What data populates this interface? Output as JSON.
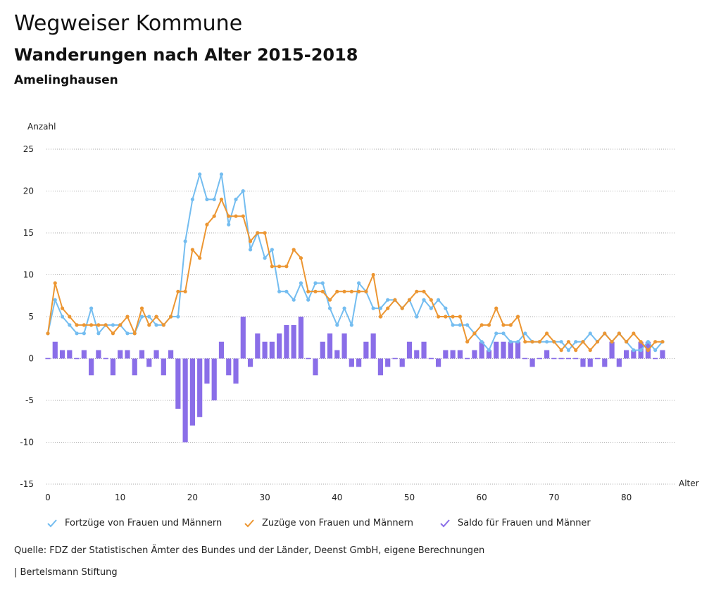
{
  "header": {
    "title": "Wegweiser Kommune",
    "subtitle": "Wanderungen nach Alter 2015-2018",
    "region": "Amelinghausen"
  },
  "footer": {
    "source": "Quelle: FDZ der Statistischen Ämter des Bundes und der Länder, Deenst GmbH, eigene Berechnungen",
    "org": "| Bertelsmann Stiftung"
  },
  "colors": {
    "fortzuege": "#74bdf0",
    "zuzuege": "#ec9632",
    "saldo": "#8a6ee8",
    "grid": "#aaaaaa"
  },
  "chart_data": {
    "type": "line+bar",
    "ylabel": "Anzahl",
    "xlabel": "Alter",
    "ylim": [
      -15,
      25
    ],
    "yticks": [
      25,
      20,
      15,
      10,
      5,
      0,
      -5,
      -10,
      -15
    ],
    "xlim": [
      0,
      86
    ],
    "xticks": [
      0,
      10,
      20,
      30,
      40,
      50,
      60,
      70,
      80
    ],
    "grid": true,
    "legend_position": "bottom",
    "series": [
      {
        "name": "Fortzüge von Frauen und Männern",
        "type": "line",
        "values": [
          3,
          7,
          5,
          4,
          3,
          3,
          6,
          3,
          4,
          4,
          4,
          3,
          3,
          5,
          5,
          4,
          4,
          5,
          5,
          14,
          19,
          22,
          19,
          19,
          22,
          16,
          19,
          20,
          13,
          15,
          12,
          13,
          8,
          8,
          7,
          9,
          7,
          9,
          9,
          6,
          4,
          6,
          4,
          9,
          8,
          6,
          6,
          7,
          7,
          6,
          7,
          5,
          7,
          6,
          7,
          6,
          4,
          4,
          4,
          3,
          2,
          1,
          3,
          3,
          2,
          2,
          3,
          2,
          2,
          2,
          2,
          2,
          1,
          2,
          2,
          3,
          2,
          3,
          2,
          3,
          2,
          1,
          1,
          2,
          1,
          2
        ]
      },
      {
        "name": "Zuzüge von Frauen und Männern",
        "type": "line",
        "values": [
          3,
          9,
          6,
          5,
          4,
          4,
          4,
          4,
          4,
          3,
          4,
          5,
          3,
          6,
          4,
          5,
          4,
          5,
          8,
          8,
          13,
          12,
          16,
          17,
          19,
          17,
          17,
          17,
          14,
          15,
          15,
          11,
          11,
          11,
          13,
          12,
          8,
          8,
          8,
          7,
          8,
          8,
          8,
          8,
          8,
          10,
          5,
          6,
          7,
          6,
          7,
          8,
          8,
          7,
          5,
          5,
          5,
          5,
          2,
          3,
          4,
          4,
          6,
          4,
          4,
          5,
          2,
          2,
          2,
          3,
          2,
          1,
          2,
          1,
          2,
          1,
          2,
          3,
          2,
          3,
          2,
          3,
          2,
          1,
          2,
          2
        ]
      },
      {
        "name": "Saldo für Frauen und Männer",
        "type": "bar",
        "values": [
          0,
          2,
          1,
          1,
          0,
          1,
          -2,
          1,
          0,
          -2,
          1,
          1,
          -2,
          1,
          -1,
          1,
          -2,
          1,
          -6,
          -10,
          -8,
          -7,
          -3,
          -5,
          2,
          -2,
          -3,
          5,
          -1,
          3,
          2,
          2,
          3,
          4,
          4,
          5,
          0,
          -2,
          2,
          3,
          1,
          3,
          -1,
          -1,
          2,
          3,
          -2,
          -1,
          0,
          -1,
          2,
          1,
          2,
          0,
          -1,
          1,
          1,
          1,
          0,
          1,
          2,
          1,
          2,
          2,
          2,
          2,
          0,
          -1,
          0,
          1,
          0,
          0,
          0,
          0,
          -1,
          -1,
          0,
          -1,
          2,
          -1,
          1,
          1,
          2,
          2,
          0,
          1
        ]
      }
    ]
  }
}
